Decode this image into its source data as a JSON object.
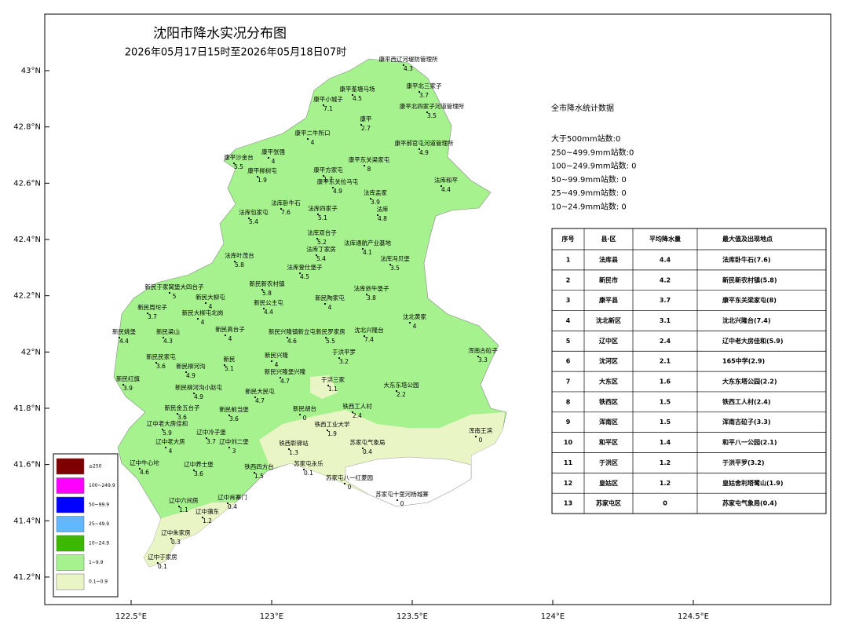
{
  "header": {
    "title": "沈阳市降水实况分布图",
    "subtitle": "2026年05月17日15时至2026年05月18日07时"
  },
  "axes": {
    "yticks": [
      {
        "value": 43,
        "label": "43°N"
      },
      {
        "value": 42.8,
        "label": "42.8°N"
      },
      {
        "value": 42.6,
        "label": "42.6°N"
      },
      {
        "value": 42.4,
        "label": "42.4°N"
      },
      {
        "value": 42.2,
        "label": "42.2°N"
      },
      {
        "value": 42,
        "label": "42°N"
      },
      {
        "value": 41.8,
        "label": "41.8°N"
      },
      {
        "value": 41.6,
        "label": "41.6°N"
      },
      {
        "value": 41.4,
        "label": "41.4°N"
      },
      {
        "value": 41.2,
        "label": "41.2°N"
      }
    ],
    "xticks": [
      {
        "value": 122.5,
        "label": "122.5°E"
      },
      {
        "value": 123,
        "label": "123°E"
      },
      {
        "value": 123.5,
        "label": "123.5°E"
      },
      {
        "value": 124,
        "label": "124°E"
      },
      {
        "value": 124.5,
        "label": "124.5°E"
      }
    ]
  },
  "legend": [
    {
      "label": "≥250",
      "color": "#7f0000"
    },
    {
      "label": "100~249.9",
      "color": "#ff00ff"
    },
    {
      "label": "50~99.9",
      "color": "#0000ff"
    },
    {
      "label": "25~49.9",
      "color": "#61b8ff"
    },
    {
      "label": "10~24.9",
      "color": "#3cb800"
    },
    {
      "label": "1~9.9",
      "color": "#a6f28f"
    },
    {
      "label": "0.1~0.9",
      "color": "#eaf5c6"
    }
  ],
  "stats": {
    "title": "全市降水统计数据",
    "lines": [
      "大于500mm站数:0",
      "250~499.9mm站数:0",
      "100~249.9mm站数:  0",
      "50~99.9mm站数:  0",
      "25~49.9mm站数:  0",
      "10~24.9mm站数:  0"
    ]
  },
  "table": {
    "header": [
      "序号",
      "县·区",
      "平均降水量",
      "最大值及出现地点"
    ],
    "rows": [
      [
        1,
        "法库县",
        4.4,
        "法库卧牛石(7.6)"
      ],
      [
        2,
        "新民市",
        4.2,
        "新民新农村镇(5.8)"
      ],
      [
        3,
        "康平县",
        3.7,
        "康平东关梁家屯(8)"
      ],
      [
        4,
        "沈北新区",
        3.1,
        "沈北兴隆台(7.4)"
      ],
      [
        5,
        "辽中区",
        2.4,
        "辽中老大房佳和(5.9)"
      ],
      [
        6,
        "沈河区",
        2.1,
        "165中学(2.9)"
      ],
      [
        7,
        "大东区",
        1.6,
        "大东东塔公园(2.2)"
      ],
      [
        8,
        "铁西区",
        1.5,
        "铁西工人村(2.4)"
      ],
      [
        9,
        "浑南区",
        1.5,
        "浑南古砬子(3.3)"
      ],
      [
        10,
        "和平区",
        1.4,
        "和平八一公园(2.1)"
      ],
      [
        11,
        "于洪区",
        1.2,
        "于洪平罗(3.2)"
      ],
      [
        12,
        "皇姑区",
        1.2,
        "皇姑舍利塔鹭山(1.9)"
      ],
      [
        13,
        "苏家屯区",
        0,
        "苏家屯气象局(0.4)"
      ]
    ]
  },
  "stations": [
    {
      "name": "康平西辽河堤防管理所",
      "value": 4.3
    },
    {
      "name": "康平莑塘马场",
      "value": 4.5
    },
    {
      "name": "康平小城子",
      "value": 7.1
    },
    {
      "name": "康平北三家子",
      "value": 3.7
    },
    {
      "name": "康平北四家子河道管理所",
      "value": 3.5
    },
    {
      "name": "康平",
      "value": 2.7
    },
    {
      "name": "康平郝官屯河道管理所",
      "value": 4.9
    },
    {
      "name": "康平二牛所口",
      "value": 4
    },
    {
      "name": "康平张强",
      "value": 4
    },
    {
      "name": "康平沙金台",
      "value": 5.5
    },
    {
      "name": "康平东关梁家屯",
      "value": 8
    },
    {
      "name": "康平柳树屯",
      "value": 1.9
    },
    {
      "name": "康平方家屯",
      "value": 1.7
    },
    {
      "name": "康平东关拉马屯",
      "value": 4.9
    },
    {
      "name": "法库和平",
      "value": 4.4
    },
    {
      "name": "法库孟家",
      "value": 3.9
    },
    {
      "name": "法库卧牛石",
      "value": 7.6
    },
    {
      "name": "法库四家子",
      "value": 5.1
    },
    {
      "name": "法库",
      "value": 4.8
    },
    {
      "name": "法库包家屯",
      "value": 5.4
    },
    {
      "name": "法库双台子",
      "value": 5.2
    },
    {
      "name": "法库通航产业基地",
      "value": 4.1
    },
    {
      "name": "法库叶茂台",
      "value": 5.8
    },
    {
      "name": "法库丁家房",
      "value": 5.4
    },
    {
      "name": "法库冯贝堡",
      "value": 3.5
    },
    {
      "name": "法库登仕堡子",
      "value": 4.5
    },
    {
      "name": "新民新农村镇",
      "value": 5.8
    },
    {
      "name": "法库依牛堡子",
      "value": 3.8
    },
    {
      "name": "新民于家窝堡大四台子",
      "value": 5
    },
    {
      "name": "新民大柳屯",
      "value": 4
    },
    {
      "name": "新民公主屯",
      "value": 4.4
    },
    {
      "name": "新民陶家屯",
      "value": 4
    },
    {
      "name": "新民周坨子",
      "value": 3.7
    },
    {
      "name": "新民大柳屯北岗",
      "value": 4
    },
    {
      "name": "沈北黄家",
      "value": 4
    },
    {
      "name": "新民姚堡",
      "value": 4.4
    },
    {
      "name": "新民梁山",
      "value": 4.3
    },
    {
      "name": "新民高台子",
      "value": 4
    },
    {
      "name": "新民兴隆镇新立屯",
      "value": 4.6
    },
    {
      "name": "新民罗家房",
      "value": 5.5
    },
    {
      "name": "沈北兴隆台",
      "value": 7.4
    },
    {
      "name": "新民",
      "value": 5.1
    },
    {
      "name": "新民民家屯",
      "value": 3.6
    },
    {
      "name": "新民柳河沟",
      "value": 4.9
    },
    {
      "name": "新民兴隆",
      "value": 4
    },
    {
      "name": "于洪平罗",
      "value": 3.2
    },
    {
      "name": "新民红旗",
      "value": 3.9
    },
    {
      "name": "新民兴隆堡兴隆",
      "value": 4.7
    },
    {
      "name": "新民柳河沟小赵屯",
      "value": 4.9
    },
    {
      "name": "新民大民屯",
      "value": 4.7
    },
    {
      "name": "新民金五台子",
      "value": 3.6
    },
    {
      "name": "新民前当堡",
      "value": 3.6
    },
    {
      "name": "新民胡台",
      "value": 0
    },
    {
      "name": "辽中老大房佳和",
      "value": 5.9
    },
    {
      "name": "辽中冷子堡",
      "value": 3.7
    },
    {
      "name": "辽中老大房",
      "value": 4
    },
    {
      "name": "辽中刘二堡",
      "value": 3
    },
    {
      "name": "辽中牛心坨",
      "value": 4.6
    },
    {
      "name": "辽中养士堡",
      "value": 3.6
    },
    {
      "name": "铁西四方台",
      "value": 1.5
    },
    {
      "name": "辽中六间房",
      "value": 1.1
    },
    {
      "name": "辽中肖寨门",
      "value": 0.4
    },
    {
      "name": "辽中蒲东",
      "value": 1.2
    },
    {
      "name": "辽中朱家房",
      "value": 0.3
    },
    {
      "name": "辽中于家房",
      "value": 0.1
    },
    {
      "name": "苏家屯永乐",
      "value": 0.1
    },
    {
      "name": "铁西工业大学",
      "value": 1.9
    },
    {
      "name": "铁西彰驿站",
      "value": 1.3
    },
    {
      "name": "铁西工人村",
      "value": 2.4
    },
    {
      "name": "浑南古砬子",
      "value": 3.3
    },
    {
      "name": "于洪三家",
      "value": 1.1
    },
    {
      "name": "大东东塔公园",
      "value": 2.2
    },
    {
      "name": "浑南王滨",
      "value": 0
    },
    {
      "name": "苏家屯气象局",
      "value": 0.4
    },
    {
      "name": "苏家屯十里河杨城寨",
      "value": 0
    },
    {
      "name": "苏家屯八一红菱园",
      "value": 0
    }
  ]
}
